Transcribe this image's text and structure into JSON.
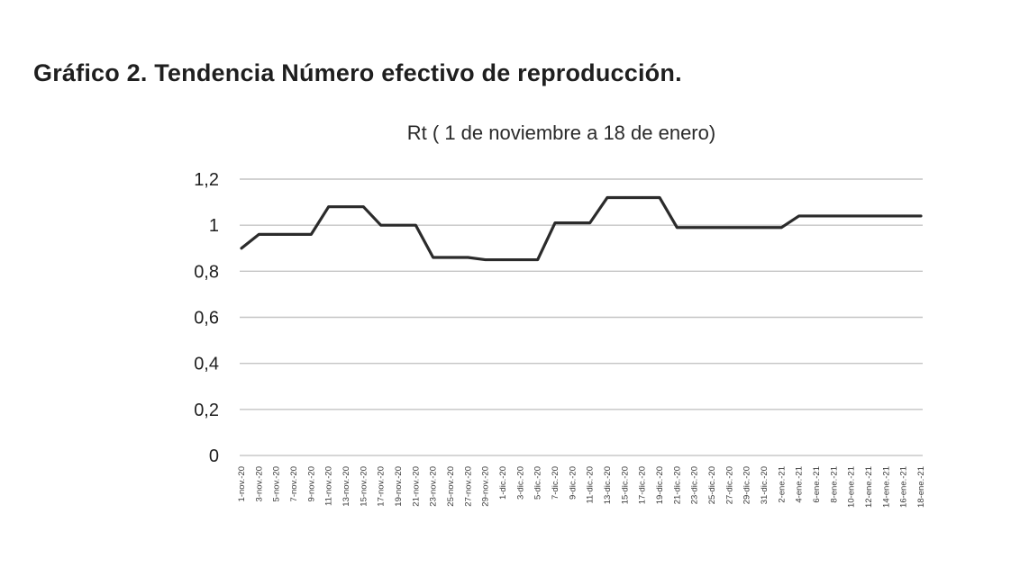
{
  "heading": "Gráfico 2. Tendencia Número efectivo de reproducción.",
  "chart_data": {
    "type": "line",
    "title": "Rt ( 1 de noviembre a 18 de enero)",
    "xlabel": "",
    "ylabel": "",
    "ylim": [
      0,
      1.2
    ],
    "yticks": [
      "0",
      "0,2",
      "0,4",
      "0,6",
      "0,8",
      "1",
      "1,2"
    ],
    "grid": true,
    "legend": "none",
    "categories": [
      "1-nov.-20",
      "3-nov.-20",
      "5-nov.-20",
      "7-nov.-20",
      "9-nov.-20",
      "11-nov.-20",
      "13-nov.-20",
      "15-nov.-20",
      "17-nov.-20",
      "19-nov.-20",
      "21-nov.-20",
      "23-nov.-20",
      "25-nov.-20",
      "27-nov.-20",
      "29-nov.-20",
      "1-dic.-20",
      "3-dic.-20",
      "5-dic.-20",
      "7-dic.-20",
      "9-dic.-20",
      "11-dic.-20",
      "13-dic.-20",
      "15-dic.-20",
      "17-dic.-20",
      "19-dic.-20",
      "21-dic.-20",
      "23-dic.-20",
      "25-dic.-20",
      "27-dic.-20",
      "29-dic.-20",
      "31-dic.-20",
      "2-ene.-21",
      "4-ene.-21",
      "6-ene.-21",
      "8-ene.-21",
      "10-ene.-21",
      "12-ene.-21",
      "14-ene.-21",
      "16-ene.-21",
      "18-ene.-21"
    ],
    "series": [
      {
        "name": "Rt",
        "color": "#2b2b2b",
        "values": [
          0.9,
          0.96,
          0.96,
          0.96,
          0.96,
          1.08,
          1.08,
          1.08,
          1.0,
          1.0,
          1.0,
          0.86,
          0.86,
          0.86,
          0.85,
          0.85,
          0.85,
          0.85,
          1.01,
          1.01,
          1.01,
          1.12,
          1.12,
          1.12,
          1.12,
          0.99,
          0.99,
          0.99,
          0.99,
          0.99,
          0.99,
          0.99,
          1.04,
          1.04,
          1.04,
          1.04,
          1.04,
          1.04,
          1.04,
          1.04
        ]
      }
    ]
  }
}
